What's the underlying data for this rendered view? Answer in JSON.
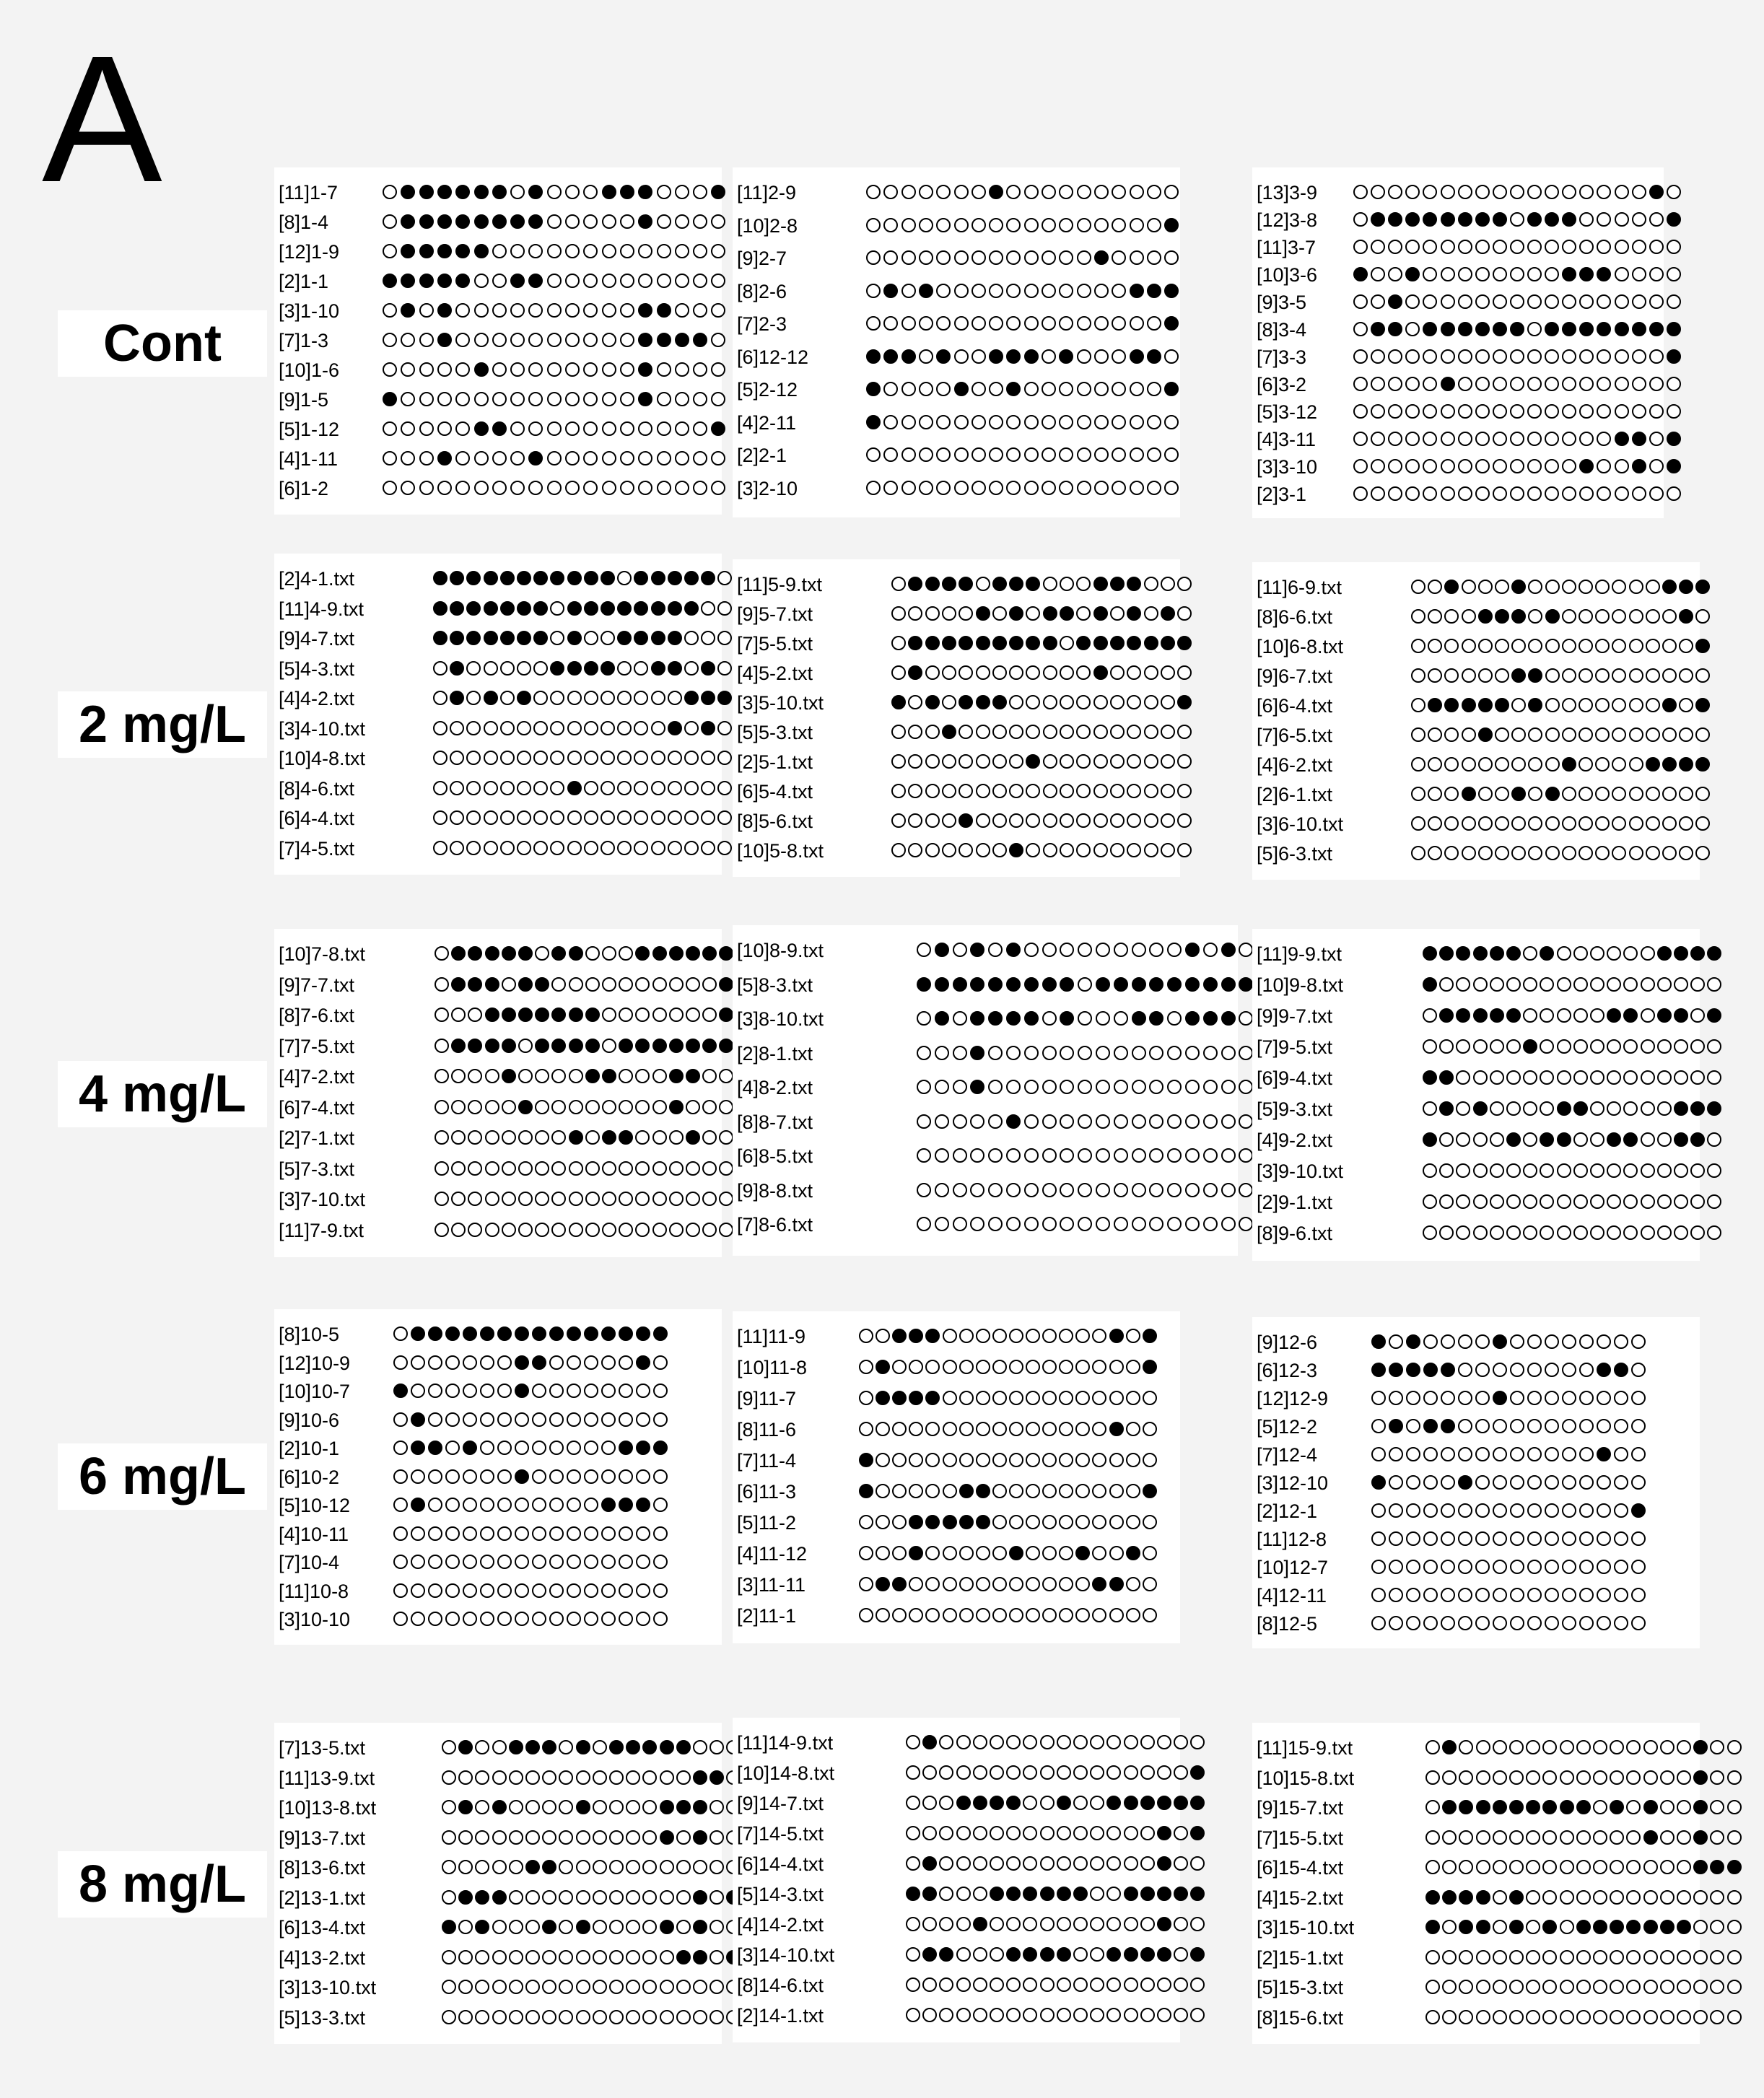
{
  "panel_letter": "A",
  "legend_symbols": {
    "methylated_cpg": "filled-circle",
    "unmethylated_cpg": "open-circle"
  },
  "colors": {
    "methylated": "#000000",
    "unmethylated": "#ffffff",
    "outline": "#000000",
    "background": "#f3f3f3"
  },
  "groups": [
    {
      "label": "Cont",
      "blocks": [
        {
          "clones": [
            {
              "label": "[11]1-7",
              "pattern": "0111111010001110001"
            },
            {
              "label": "[8]1-4",
              "pattern": "0111111110000010000"
            },
            {
              "label": "[12]1-9",
              "pattern": "0111110000000000000"
            },
            {
              "label": "[2]1-1",
              "pattern": "1111100110000000000"
            },
            {
              "label": "[3]1-10",
              "pattern": "0101000000000011000"
            },
            {
              "label": "[7]1-3",
              "pattern": "0001000000000011110"
            },
            {
              "label": "[10]1-6",
              "pattern": "0000010000000010000"
            },
            {
              "label": "[9]1-5",
              "pattern": "1000000000000010000"
            },
            {
              "label": "[5]1-12",
              "pattern": "0000011000000000001"
            },
            {
              "label": "[4]1-11",
              "pattern": "0001000010000000000"
            },
            {
              "label": "[6]1-2",
              "pattern": "0000000000000000000"
            }
          ]
        },
        {
          "clones": [
            {
              "label": "[11]2-9",
              "pattern": "000000010000000000"
            },
            {
              "label": "[10]2-8",
              "pattern": "000000000000000001"
            },
            {
              "label": "[9]2-7",
              "pattern": "000000000000010000"
            },
            {
              "label": "[8]2-6",
              "pattern": "010100000000000111"
            },
            {
              "label": "[7]2-3",
              "pattern": "000000000000000001"
            },
            {
              "label": "[6]12-12",
              "pattern": "111010011101000110"
            },
            {
              "label": "[5]2-12",
              "pattern": "100001001000000001"
            },
            {
              "label": "[4]2-11",
              "pattern": "100000000000000000"
            },
            {
              "label": "[2]2-1",
              "pattern": "000000000000000000"
            },
            {
              "label": "[3]2-10",
              "pattern": "000000000000000000"
            }
          ]
        },
        {
          "clones": [
            {
              "label": "[13]3-9",
              "pattern": "0000000000000000010"
            },
            {
              "label": "[12]3-8",
              "pattern": "0111111110111000001"
            },
            {
              "label": "[11]3-7",
              "pattern": "0000000000000000000"
            },
            {
              "label": "[10]3-6",
              "pattern": "1001000000001110000"
            },
            {
              "label": "[9]3-5",
              "pattern": "0010000000000000000"
            },
            {
              "label": "[8]3-4",
              "pattern": "0110111111011111111"
            },
            {
              "label": "[7]3-3",
              "pattern": "0000000000000000001"
            },
            {
              "label": "[6]3-2",
              "pattern": "0000010000000000000"
            },
            {
              "label": "[5]3-12",
              "pattern": "0000000000000000000"
            },
            {
              "label": "[4]3-11",
              "pattern": "0000000000000001101"
            },
            {
              "label": "[3]3-10",
              "pattern": "0000000000000100101"
            },
            {
              "label": "[2]3-1",
              "pattern": "0000000000000000000"
            }
          ]
        }
      ]
    },
    {
      "label": "2 mg/L",
      "blocks": [
        {
          "clones": [
            {
              "label": "[2]4-1.txt",
              "pattern": "111111111110111110"
            },
            {
              "label": "[11]4-9.txt",
              "pattern": "111111101111111100"
            },
            {
              "label": "[9]4-7.txt",
              "pattern": "111111101001111000"
            },
            {
              "label": "[5]4-3.txt",
              "pattern": "010000011110011010"
            },
            {
              "label": "[4]4-2.txt",
              "pattern": "010101000000000111"
            },
            {
              "label": "[3]4-10.txt",
              "pattern": "000000000000001010"
            },
            {
              "label": "[10]4-8.txt",
              "pattern": "000000000000000000"
            },
            {
              "label": "[8]4-6.txt",
              "pattern": "000000001000000000"
            },
            {
              "label": "[6]4-4.txt",
              "pattern": "000000000000000000"
            },
            {
              "label": "[7]4-5.txt",
              "pattern": "000000000000000000"
            }
          ]
        },
        {
          "clones": [
            {
              "label": "[11]5-9.txt",
              "pattern": "011110111000111000"
            },
            {
              "label": "[9]5-7.txt",
              "pattern": "000001010110101010"
            },
            {
              "label": "[7]5-5.txt",
              "pattern": "011111111101111111"
            },
            {
              "label": "[4]5-2.txt",
              "pattern": "010000000000100000"
            },
            {
              "label": "[3]5-10.txt",
              "pattern": "101011100000000001"
            },
            {
              "label": "[5]5-3.txt",
              "pattern": "000100000000000000"
            },
            {
              "label": "[2]5-1.txt",
              "pattern": "000000001000000000"
            },
            {
              "label": "[6]5-4.txt",
              "pattern": "000000000000000000"
            },
            {
              "label": "[8]5-6.txt",
              "pattern": "000010000000000000"
            },
            {
              "label": "[10]5-8.txt",
              "pattern": "000000010000000000"
            }
          ]
        },
        {
          "clones": [
            {
              "label": "[11]6-9.txt",
              "pattern": "001000100000000111"
            },
            {
              "label": "[8]6-6.txt",
              "pattern": "000011101000000010"
            },
            {
              "label": "[10]6-8.txt",
              "pattern": "000000000000000001"
            },
            {
              "label": "[9]6-7.txt",
              "pattern": "000000110000000000"
            },
            {
              "label": "[6]6-4.txt",
              "pattern": "011111010000000101"
            },
            {
              "label": "[7]6-5.txt",
              "pattern": "000010000000000000"
            },
            {
              "label": "[4]6-2.txt",
              "pattern": "000000000100001111"
            },
            {
              "label": "[2]6-1.txt",
              "pattern": "000100101000000000"
            },
            {
              "label": "[3]6-10.txt",
              "pattern": "000000000000000000"
            },
            {
              "label": "[5]6-3.txt",
              "pattern": "000000000000000000"
            }
          ]
        }
      ]
    },
    {
      "label": "4 mg/L",
      "blocks": [
        {
          "clones": [
            {
              "label": "[10]7-8.txt",
              "pattern": "011111011000111111"
            },
            {
              "label": "[9]7-7.txt",
              "pattern": "011101100000000001"
            },
            {
              "label": "[8]7-6.txt",
              "pattern": "000111111100000001"
            },
            {
              "label": "[7]7-5.txt",
              "pattern": "011110111101111111"
            },
            {
              "label": "[4]7-2.txt",
              "pattern": "000010000110001100"
            },
            {
              "label": "[6]7-4.txt",
              "pattern": "000001000000001000"
            },
            {
              "label": "[2]7-1.txt",
              "pattern": "000000001011000100"
            },
            {
              "label": "[5]7-3.txt",
              "pattern": "000000000000000000"
            },
            {
              "label": "[3]7-10.txt",
              "pattern": "000000000000000000"
            },
            {
              "label": "[11]7-9.txt",
              "pattern": "000000000000000000"
            }
          ]
        },
        {
          "clones": [
            {
              "label": "[10]8-9.txt",
              "pattern": "0101010000000001010"
            },
            {
              "label": "[5]8-3.txt",
              "pattern": "1111111110111111111"
            },
            {
              "label": "[3]8-10.txt",
              "pattern": "0101111010001101110"
            },
            {
              "label": "[2]8-1.txt",
              "pattern": "0001000000000000000"
            },
            {
              "label": "[4]8-2.txt",
              "pattern": "0001000000000000000"
            },
            {
              "label": "[8]8-7.txt",
              "pattern": "0000010000000000000"
            },
            {
              "label": "[6]8-5.txt",
              "pattern": "0000000000000000000"
            },
            {
              "label": "[9]8-8.txt",
              "pattern": "0000000000000000000"
            },
            {
              "label": "[7]8-6.txt",
              "pattern": "0000000000000000000"
            }
          ]
        },
        {
          "clones": [
            {
              "label": "[11]9-9.txt",
              "pattern": "111111010000001111"
            },
            {
              "label": "[10]9-8.txt",
              "pattern": "100000000000000000"
            },
            {
              "label": "[9]9-7.txt",
              "pattern": "011111000001101101"
            },
            {
              "label": "[7]9-5.txt",
              "pattern": "000000100000000000"
            },
            {
              "label": "[6]9-4.txt",
              "pattern": "110000000000000000"
            },
            {
              "label": "[5]9-3.txt",
              "pattern": "010100001100000111"
            },
            {
              "label": "[4]9-2.txt",
              "pattern": "100001011001100110"
            },
            {
              "label": "[3]9-10.txt",
              "pattern": "000000000000000000"
            },
            {
              "label": "[2]9-1.txt",
              "pattern": "000000000000000000"
            },
            {
              "label": "[8]9-6.txt",
              "pattern": "000000000000000000"
            }
          ]
        }
      ]
    },
    {
      "label": "6 mg/L",
      "blocks": [
        {
          "clones": [
            {
              "label": "[8]10-5",
              "pattern": "0111111111111111"
            },
            {
              "label": "[12]10-9",
              "pattern": "0000000110000010"
            },
            {
              "label": "[10]10-7",
              "pattern": "1000000100000000"
            },
            {
              "label": "[9]10-6",
              "pattern": "0100000000000000"
            },
            {
              "label": "[2]10-1",
              "pattern": "0110100000000111"
            },
            {
              "label": "[6]10-2",
              "pattern": "0000000100000000"
            },
            {
              "label": "[5]10-12",
              "pattern": "0100000000001110"
            },
            {
              "label": "[4]10-11",
              "pattern": "0000000000000000"
            },
            {
              "label": "[7]10-4",
              "pattern": "0000000000000000"
            },
            {
              "label": "[11]10-8",
              "pattern": "0000000000000000"
            },
            {
              "label": "[3]10-10",
              "pattern": "0000000000000000"
            }
          ]
        },
        {
          "clones": [
            {
              "label": "[11]11-9",
              "pattern": "001110000000000101"
            },
            {
              "label": "[10]11-8",
              "pattern": "010000000000000001"
            },
            {
              "label": "[9]11-7",
              "pattern": "011110000000000000"
            },
            {
              "label": "[8]11-6",
              "pattern": "000000000000000100"
            },
            {
              "label": "[7]11-4",
              "pattern": "100000000000000000"
            },
            {
              "label": "[6]11-3",
              "pattern": "100000110000000001"
            },
            {
              "label": "[5]11-2",
              "pattern": "000111110000000000"
            },
            {
              "label": "[4]11-12",
              "pattern": "000100000100010010"
            },
            {
              "label": "[3]11-11",
              "pattern": "011000000000001100"
            },
            {
              "label": "[2]11-1",
              "pattern": "000000000000000000"
            }
          ]
        },
        {
          "clones": [
            {
              "label": "[9]12-6",
              "pattern": "1010000100000000"
            },
            {
              "label": "[6]12-3",
              "pattern": "1111100000000110"
            },
            {
              "label": "[12]12-9",
              "pattern": "0000000100000000"
            },
            {
              "label": "[5]12-2",
              "pattern": "0101100000000000"
            },
            {
              "label": "[7]12-4",
              "pattern": "0000000000000100"
            },
            {
              "label": "[3]12-10",
              "pattern": "1000010000000000"
            },
            {
              "label": "[2]12-1",
              "pattern": "0000000000000001"
            },
            {
              "label": "[11]12-8",
              "pattern": "0000000000000000"
            },
            {
              "label": "[10]12-7",
              "pattern": "0000000000000000"
            },
            {
              "label": "[4]12-11",
              "pattern": "0000000000000000"
            },
            {
              "label": "[8]12-5",
              "pattern": "0000000000000000"
            }
          ]
        }
      ]
    },
    {
      "label": "8 mg/L",
      "blocks": [
        {
          "clones": [
            {
              "label": "[7]13-5.txt",
              "pattern": "010011101011111000"
            },
            {
              "label": "[11]13-9.txt",
              "pattern": "000000000000000110"
            },
            {
              "label": "[10]13-8.txt",
              "pattern": "010100001000011100"
            },
            {
              "label": "[9]13-7.txt",
              "pattern": "000000000000010100"
            },
            {
              "label": "[8]13-6.txt",
              "pattern": "000001100000000000"
            },
            {
              "label": "[2]13-1.txt",
              "pattern": "011100000000000101"
            },
            {
              "label": "[6]13-4.txt",
              "pattern": "101000101000010100"
            },
            {
              "label": "[4]13-2.txt",
              "pattern": "000000000000001101"
            },
            {
              "label": "[3]13-10.txt",
              "pattern": "000000000000000000"
            },
            {
              "label": "[5]13-3.txt",
              "pattern": "000000000000000000"
            }
          ]
        },
        {
          "clones": [
            {
              "label": "[11]14-9.txt",
              "pattern": "010000000000000000"
            },
            {
              "label": "[10]14-8.txt",
              "pattern": "000000000000000001"
            },
            {
              "label": "[9]14-7.txt",
              "pattern": "000111100100111111"
            },
            {
              "label": "[7]14-5.txt",
              "pattern": "000000000000000101"
            },
            {
              "label": "[6]14-4.txt",
              "pattern": "010000000000000100"
            },
            {
              "label": "[5]14-3.txt",
              "pattern": "110001111110011111"
            },
            {
              "label": "[4]14-2.txt",
              "pattern": "000010000000000100"
            },
            {
              "label": "[3]14-10.txt",
              "pattern": "011000111100111101"
            },
            {
              "label": "[8]14-6.txt",
              "pattern": "000000000000000000"
            },
            {
              "label": "[2]14-1.txt",
              "pattern": "000000000000000000"
            }
          ]
        },
        {
          "clones": [
            {
              "label": "[11]15-9.txt",
              "pattern": "0100000000000000100"
            },
            {
              "label": "[10]15-8.txt",
              "pattern": "0000000000000000100"
            },
            {
              "label": "[9]15-7.txt",
              "pattern": "0111111111010100100"
            },
            {
              "label": "[7]15-5.txt",
              "pattern": "0000000000000100100"
            },
            {
              "label": "[6]15-4.txt",
              "pattern": "0000000000000000111"
            },
            {
              "label": "[4]15-2.txt",
              "pattern": "1111010000000000000"
            },
            {
              "label": "[3]15-10.txt",
              "pattern": "1011010101111111000"
            },
            {
              "label": "[2]15-1.txt",
              "pattern": "0000000000000000000"
            },
            {
              "label": "[5]15-3.txt",
              "pattern": "0000000000000000000"
            },
            {
              "label": "[8]15-6.txt",
              "pattern": "0000000000000000000"
            }
          ]
        }
      ]
    }
  ]
}
